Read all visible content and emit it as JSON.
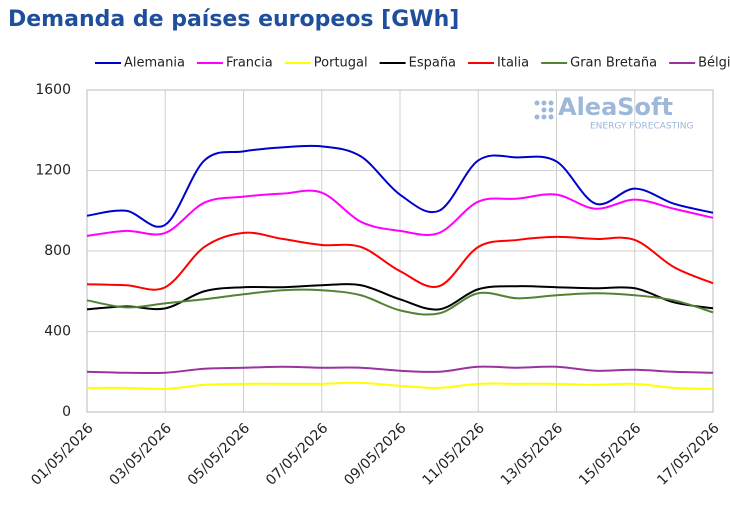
{
  "chart_data": {
    "type": "line",
    "title": "Demanda de países europeos [GWh]",
    "logo": {
      "name": "AleaSoft",
      "tagline": "ENERGY FORECASTING"
    },
    "categories": [
      "01/05/2026",
      null,
      "03/05/2026",
      null,
      "05/05/2026",
      null,
      "07/05/2026",
      null,
      "09/05/2026",
      null,
      "11/05/2026",
      null,
      "13/05/2026",
      null,
      "15/05/2026",
      null,
      "17/05/2026"
    ],
    "series": [
      {
        "name": "Alemania",
        "color": "#0000cc",
        "values": [
          975,
          1000,
          930,
          1250,
          1295,
          1315,
          1320,
          1270,
          1080,
          1000,
          1250,
          1265,
          1245,
          1035,
          1110,
          1035,
          990
        ]
      },
      {
        "name": "Francia",
        "color": "#ff00ff",
        "values": [
          875,
          900,
          890,
          1040,
          1070,
          1085,
          1090,
          945,
          900,
          890,
          1045,
          1060,
          1080,
          1010,
          1055,
          1010,
          965
        ]
      },
      {
        "name": "Portugal",
        "color": "#ffff00",
        "values": [
          120,
          120,
          115,
          135,
          140,
          140,
          140,
          145,
          130,
          120,
          140,
          140,
          140,
          135,
          140,
          120,
          115
        ]
      },
      {
        "name": "España",
        "color": "#000000",
        "values": [
          510,
          525,
          515,
          600,
          620,
          620,
          630,
          630,
          560,
          510,
          610,
          625,
          620,
          615,
          615,
          545,
          515
        ]
      },
      {
        "name": "Italia",
        "color": "#ff0000",
        "values": [
          635,
          630,
          620,
          820,
          890,
          860,
          830,
          820,
          700,
          625,
          820,
          855,
          870,
          860,
          855,
          720,
          640
        ]
      },
      {
        "name": "Gran Bretaña",
        "color": "#548235",
        "values": [
          555,
          520,
          540,
          560,
          585,
          605,
          605,
          580,
          505,
          490,
          590,
          565,
          580,
          590,
          580,
          555,
          495
        ]
      },
      {
        "name": "Bélgica",
        "color": "#9933a0",
        "values": [
          200,
          195,
          195,
          215,
          220,
          225,
          220,
          220,
          205,
          200,
          225,
          220,
          225,
          205,
          210,
          200,
          195
        ]
      }
    ],
    "ylim": [
      0,
      1600
    ],
    "yticks": [
      0,
      400,
      800,
      1200,
      1600
    ],
    "grid": true
  }
}
